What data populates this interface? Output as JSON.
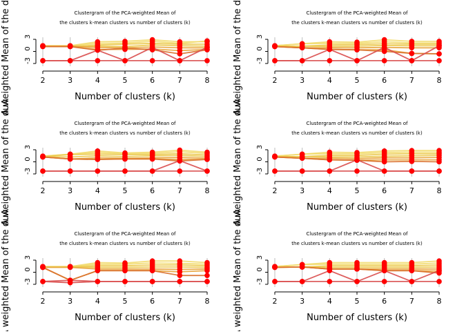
{
  "chart_data": [
    {
      "type": "line",
      "title_line1": "Clustergram of the PCA-weighted Mean of",
      "title_line2": "the clusters k-mean clusters vs number of clusters (k)",
      "xlabel": "Number of clusters (k)",
      "ylabel": "A weighted Mean of the duA",
      "x": [
        2,
        3,
        4,
        5,
        6,
        7,
        8
      ],
      "xlim": [
        2,
        8
      ],
      "ylim": [
        -3,
        3
      ],
      "yticks": [
        -3,
        0,
        3
      ],
      "vertical_grid": true,
      "series": [
        {
          "color": "#F2DC6E",
          "values": [
            1.4,
            1.4,
            2.4,
            2.5,
            2.9,
            2.4,
            2.4
          ]
        },
        {
          "color": "#F2DC6E",
          "values": [
            1.4,
            1.4,
            2.0,
            2.1,
            2.5,
            2.0,
            2.6
          ]
        },
        {
          "color": "#EBC94E",
          "values": [
            1.3,
            1.2,
            1.6,
            1.8,
            2.0,
            1.8,
            1.8
          ]
        },
        {
          "color": "#EBC94E",
          "values": [
            1.3,
            1.2,
            1.3,
            1.2,
            1.6,
            1.4,
            1.3
          ]
        },
        {
          "color": "#E8A43C",
          "values": [
            1.3,
            1.3,
            1.0,
            0.9,
            1.1,
            0.9,
            0.9
          ]
        },
        {
          "color": "#E8A43C",
          "values": [
            1.2,
            1.2,
            0.5,
            0.5,
            0.6,
            0.2,
            0.5
          ]
        },
        {
          "color": "#D96F2A",
          "values": [
            1.2,
            1.2,
            0.3,
            0.8,
            0.4,
            -0.6,
            0.4
          ]
        },
        {
          "color": "#D94C4C",
          "values": [
            -2.3,
            -2.3,
            -2.3,
            -2.3,
            -2.3,
            -2.3,
            -2.3
          ]
        },
        {
          "color": "#D94C4C",
          "values": [
            -2.3,
            -2.3,
            0.3,
            -2.3,
            1.0,
            -2.3,
            1.0
          ]
        }
      ]
    },
    {
      "type": "line",
      "title_line1": "Clustergram of the PCA-weighted Mean of",
      "title_line2": "the clusters k-mean clusters vs number of clusters (k)",
      "xlabel": "Number of clusters (k)",
      "ylabel": "A weighted Mean of the duA",
      "x": [
        2,
        3,
        4,
        5,
        6,
        7,
        8
      ],
      "xlim": [
        2,
        8
      ],
      "ylim": [
        -3,
        3
      ],
      "yticks": [
        -3,
        0,
        3
      ],
      "vertical_grid": true,
      "series": [
        {
          "color": "#F2DC6E",
          "values": [
            1.4,
            1.9,
            2.4,
            2.3,
            2.9,
            2.5,
            2.5
          ]
        },
        {
          "color": "#F2DC6E",
          "values": [
            1.4,
            1.9,
            2.0,
            2.0,
            2.4,
            2.1,
            2.1
          ]
        },
        {
          "color": "#EBC94E",
          "values": [
            1.3,
            1.3,
            1.6,
            1.7,
            1.9,
            1.8,
            1.8
          ]
        },
        {
          "color": "#EBC94E",
          "values": [
            1.3,
            1.3,
            1.2,
            1.3,
            1.5,
            1.4,
            1.4
          ]
        },
        {
          "color": "#E8A43C",
          "values": [
            1.2,
            0.9,
            0.9,
            0.9,
            1.0,
            0.9,
            0.9
          ]
        },
        {
          "color": "#E8A43C",
          "values": [
            1.2,
            0.9,
            0.5,
            0.4,
            0.4,
            -0.5,
            -0.6
          ]
        },
        {
          "color": "#D96F2A",
          "values": [
            1.2,
            0.9,
            0.5,
            0.4,
            0.0,
            -0.5,
            -0.6
          ]
        },
        {
          "color": "#D94C4C",
          "values": [
            -2.3,
            -2.3,
            -2.3,
            -2.3,
            -2.3,
            -2.3,
            -2.3
          ]
        },
        {
          "color": "#D94C4C",
          "values": [
            -2.3,
            -2.3,
            0.5,
            -2.3,
            1.0,
            -2.3,
            1.4
          ]
        }
      ]
    },
    {
      "type": "line",
      "title_line1": "Clustergram of the PCA-weighted Mean of",
      "title_line2": "the clusters k-mean clusters vs number of clusters (k)",
      "xlabel": "Number of clusters (k)",
      "ylabel": "A weighted Mean of the duA",
      "x": [
        2,
        3,
        4,
        5,
        6,
        7,
        8
      ],
      "xlim": [
        2,
        8
      ],
      "ylim": [
        -3,
        3
      ],
      "yticks": [
        -3,
        0,
        3
      ],
      "vertical_grid": true,
      "series": [
        {
          "color": "#F2DC6E",
          "values": [
            1.4,
            1.9,
            2.7,
            2.2,
            2.4,
            2.9,
            2.4
          ]
        },
        {
          "color": "#F2DC6E",
          "values": [
            1.4,
            1.9,
            2.3,
            2.0,
            2.1,
            2.5,
            2.1
          ]
        },
        {
          "color": "#EBC94E",
          "values": [
            1.3,
            1.8,
            1.9,
            1.8,
            1.8,
            2.0,
            1.7
          ]
        },
        {
          "color": "#EBC94E",
          "values": [
            1.3,
            1.2,
            1.5,
            1.3,
            1.5,
            1.6,
            1.3
          ]
        },
        {
          "color": "#E8A43C",
          "values": [
            1.2,
            0.7,
            1.0,
            0.9,
            1.0,
            1.1,
            0.9
          ]
        },
        {
          "color": "#E8A43C",
          "values": [
            1.2,
            0.7,
            0.6,
            0.7,
            0.7,
            0.6,
            0.6
          ]
        },
        {
          "color": "#D96F2A",
          "values": [
            1.2,
            0.7,
            0.6,
            0.7,
            0.7,
            0.2,
            0.6
          ]
        },
        {
          "color": "#D94C4C",
          "values": [
            -2.3,
            -2.3,
            -2.3,
            -2.3,
            -2.3,
            -2.3,
            -2.3
          ]
        },
        {
          "color": "#D94C4C",
          "values": [
            -2.3,
            -2.3,
            -2.3,
            -2.3,
            -2.3,
            0.3,
            -2.3
          ]
        }
      ]
    },
    {
      "type": "line",
      "title_line1": "Clustergram of the PCA-weighted Mean of",
      "title_line2": "the clusters k-mean clusters vs number of clusters (k)",
      "xlabel": "Number of clusters (k)",
      "ylabel": "A weighted Mean of the duA",
      "x": [
        2,
        3,
        4,
        5,
        6,
        7,
        8
      ],
      "xlim": [
        2,
        8
      ],
      "ylim": [
        -3,
        3
      ],
      "yticks": [
        -3,
        0,
        3
      ],
      "vertical_grid": true,
      "series": [
        {
          "color": "#F2DC6E",
          "values": [
            1.4,
            1.9,
            2.4,
            2.3,
            2.7,
            2.8,
            2.8
          ]
        },
        {
          "color": "#F2DC6E",
          "values": [
            1.4,
            1.9,
            2.0,
            2.0,
            2.3,
            2.4,
            2.4
          ]
        },
        {
          "color": "#EBC94E",
          "values": [
            1.3,
            1.3,
            1.6,
            1.6,
            1.9,
            2.0,
            2.0
          ]
        },
        {
          "color": "#EBC94E",
          "values": [
            1.3,
            1.3,
            1.2,
            1.2,
            1.4,
            1.5,
            1.6
          ]
        },
        {
          "color": "#E8A43C",
          "values": [
            1.2,
            0.9,
            0.9,
            0.8,
            1.0,
            1.0,
            1.1
          ]
        },
        {
          "color": "#E8A43C",
          "values": [
            1.2,
            0.9,
            0.5,
            0.4,
            0.5,
            0.5,
            0.5
          ]
        },
        {
          "color": "#D96F2A",
          "values": [
            1.2,
            0.9,
            0.5,
            0.4,
            0.0,
            0.1,
            0.0
          ]
        },
        {
          "color": "#D94C4C",
          "values": [
            -2.3,
            -2.3,
            -2.3,
            -2.3,
            -2.3,
            -2.3,
            -2.3
          ]
        },
        {
          "color": "#D94C4C",
          "values": [
            -2.3,
            -2.3,
            -2.3,
            0.5,
            -2.3,
            -2.3,
            -2.3
          ]
        }
      ]
    },
    {
      "type": "line",
      "title_line1": "Clustergram of the PCA-weighted Mean of",
      "title_line2": "the clusters k-mean clusters vs number of clusters (k)",
      "xlabel": "Number of clusters (k)",
      "ylabel": "A weighted Mean of the duA",
      "x": [
        2,
        3,
        4,
        5,
        6,
        7,
        8
      ],
      "xlim": [
        2,
        8
      ],
      "ylim": [
        -3,
        3
      ],
      "yticks": [
        -3,
        0,
        3
      ],
      "vertical_grid": true,
      "series": [
        {
          "color": "#F2DC6E",
          "values": [
            1.4,
            1.4,
            2.4,
            2.3,
            2.8,
            2.8,
            2.4
          ]
        },
        {
          "color": "#F2DC6E",
          "values": [
            1.4,
            1.4,
            2.0,
            2.0,
            2.3,
            2.2,
            2.0
          ]
        },
        {
          "color": "#EBC94E",
          "values": [
            1.3,
            1.3,
            1.6,
            1.6,
            1.8,
            1.8,
            1.6
          ]
        },
        {
          "color": "#EBC94E",
          "values": [
            1.3,
            1.3,
            1.2,
            1.2,
            1.3,
            1.3,
            1.2
          ]
        },
        {
          "color": "#E8A43C",
          "values": [
            1.2,
            1.2,
            0.8,
            0.8,
            0.8,
            0.7,
            0.8
          ]
        },
        {
          "color": "#E8A43C",
          "values": [
            1.2,
            -2.0,
            0.4,
            0.4,
            0.4,
            0.1,
            0.4
          ]
        },
        {
          "color": "#D96F2A",
          "values": [
            1.2,
            -2.0,
            0.4,
            0.4,
            0.4,
            -0.8,
            -0.8
          ]
        },
        {
          "color": "#D94C4C",
          "values": [
            -2.3,
            -2.0,
            -2.3,
            -2.3,
            -2.3,
            -2.3,
            -2.3
          ]
        },
        {
          "color": "#D94C4C",
          "values": [
            -2.3,
            -2.6,
            -2.3,
            -2.3,
            -2.3,
            -2.3,
            -2.3
          ]
        }
      ]
    },
    {
      "type": "line",
      "title_line1": "Clustergram of the PCA-weighted Mean of",
      "title_line2": "the clusters k-mean clusters vs number of clusters (k)",
      "xlabel": "Number of clusters (k)",
      "ylabel": "A weighted Mean of the duA",
      "x": [
        2,
        3,
        4,
        5,
        6,
        7,
        8
      ],
      "xlim": [
        2,
        8
      ],
      "ylim": [
        -3,
        3
      ],
      "yticks": [
        -3,
        0,
        3
      ],
      "vertical_grid": true,
      "series": [
        {
          "color": "#F2DC6E",
          "values": [
            1.4,
            1.9,
            2.4,
            2.4,
            2.4,
            2.4,
            2.8
          ]
        },
        {
          "color": "#F2DC6E",
          "values": [
            1.4,
            1.9,
            2.0,
            2.0,
            2.0,
            2.0,
            2.3
          ]
        },
        {
          "color": "#EBC94E",
          "values": [
            1.3,
            1.3,
            1.6,
            1.6,
            1.6,
            1.6,
            1.8
          ]
        },
        {
          "color": "#EBC94E",
          "values": [
            1.3,
            1.3,
            1.2,
            1.2,
            1.2,
            1.2,
            1.3
          ]
        },
        {
          "color": "#E8A43C",
          "values": [
            1.2,
            1.3,
            0.8,
            0.8,
            0.8,
            0.8,
            0.8
          ]
        },
        {
          "color": "#E8A43C",
          "values": [
            1.2,
            1.3,
            0.8,
            0.8,
            0.4,
            0.4,
            0.3
          ]
        },
        {
          "color": "#D96F2A",
          "values": [
            1.2,
            1.3,
            0.8,
            0.8,
            0.4,
            0.4,
            -0.2
          ]
        },
        {
          "color": "#D94C4C",
          "values": [
            -2.3,
            -2.3,
            -2.3,
            -2.3,
            -2.3,
            -2.3,
            -2.3
          ]
        },
        {
          "color": "#D94C4C",
          "values": [
            -2.3,
            -2.3,
            0.4,
            -2.3,
            0.4,
            -2.3,
            0.4
          ]
        }
      ]
    }
  ]
}
